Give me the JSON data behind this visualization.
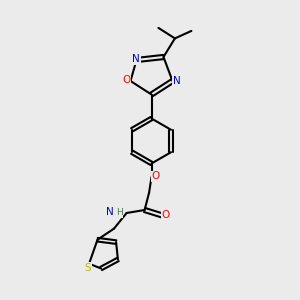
{
  "background_color": "#ebebeb",
  "bond_color": "#000000",
  "atom_colors": {
    "N": "#0000cc",
    "O": "#ff0000",
    "S": "#b8b800",
    "H": "#4a7a4a"
  },
  "figsize": [
    3.0,
    3.0
  ],
  "dpi": 100
}
